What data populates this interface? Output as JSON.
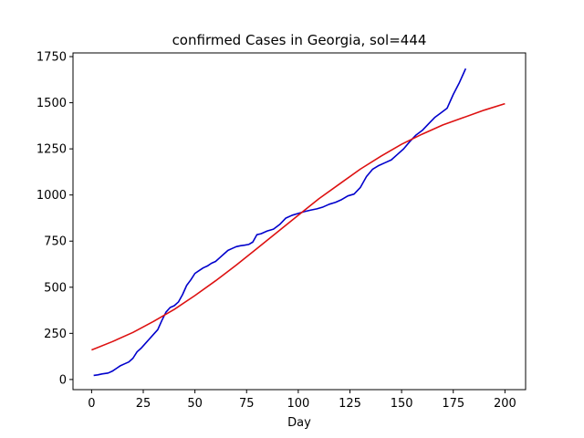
{
  "chart_data": {
    "type": "line",
    "title": "confirmed Cases in Georgia, sol=444",
    "xlabel": "Day",
    "ylabel": "",
    "xlim": [
      -9,
      210
    ],
    "ylim": [
      -55,
      1770
    ],
    "xticks": [
      0,
      25,
      50,
      75,
      100,
      125,
      150,
      175,
      200
    ],
    "yticks": [
      0,
      250,
      500,
      750,
      1000,
      1250,
      1500,
      1750
    ],
    "grid": false,
    "legend": "none",
    "series": [
      {
        "color": "#0000cc",
        "x": [
          1,
          3,
          5,
          8,
          10,
          12,
          14,
          16,
          18,
          20,
          22,
          24,
          26,
          28,
          30,
          32,
          34,
          36,
          38,
          40,
          42,
          44,
          46,
          48,
          50,
          52,
          54,
          56,
          58,
          60,
          62,
          64,
          66,
          68,
          70,
          72,
          74,
          76,
          78,
          80,
          82,
          85,
          88,
          91,
          94,
          97,
          100,
          103,
          106,
          109,
          112,
          115,
          118,
          121,
          124,
          127,
          130,
          133,
          136,
          139,
          142,
          145,
          148,
          151,
          154,
          157,
          160,
          163,
          166,
          169,
          172,
          175,
          178,
          181
        ],
        "y": [
          22,
          25,
          30,
          35,
          45,
          60,
          75,
          85,
          95,
          115,
          150,
          170,
          195,
          220,
          245,
          270,
          320,
          365,
          390,
          400,
          420,
          460,
          510,
          540,
          575,
          590,
          605,
          615,
          630,
          640,
          660,
          680,
          700,
          710,
          720,
          725,
          728,
          732,
          745,
          785,
          790,
          805,
          815,
          840,
          875,
          890,
          900,
          910,
          918,
          925,
          935,
          950,
          960,
          975,
          995,
          1005,
          1040,
          1100,
          1140,
          1160,
          1175,
          1190,
          1220,
          1250,
          1290,
          1325,
          1350,
          1385,
          1420,
          1445,
          1470,
          1545,
          1610,
          1685
        ]
      },
      {
        "color": "#dd1111",
        "x": [
          0,
          10,
          20,
          30,
          40,
          50,
          60,
          70,
          80,
          90,
          100,
          110,
          120,
          130,
          140,
          150,
          160,
          170,
          180,
          190,
          200
        ],
        "y": [
          160,
          205,
          255,
          315,
          380,
          455,
          535,
          620,
          710,
          800,
          890,
          980,
          1060,
          1140,
          1210,
          1275,
          1330,
          1380,
          1420,
          1460,
          1495
        ]
      }
    ]
  }
}
